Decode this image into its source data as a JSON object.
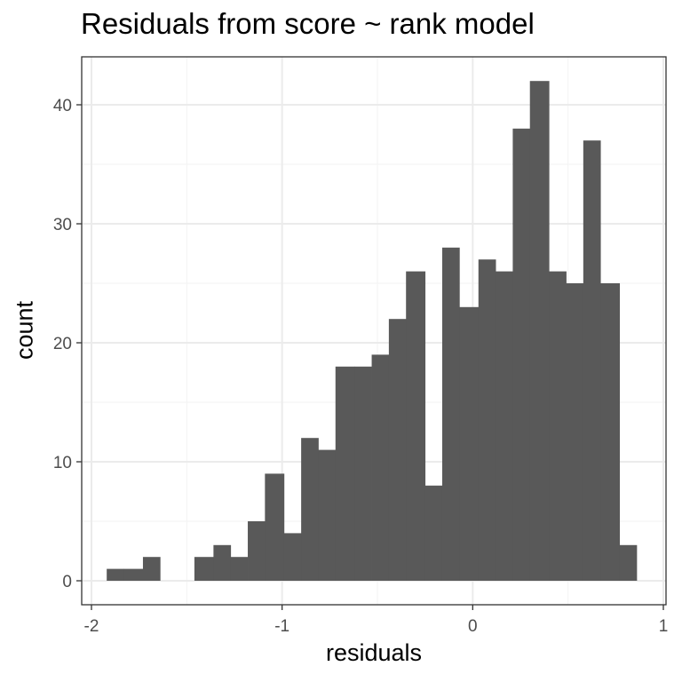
{
  "chart_data": {
    "type": "bar",
    "title": "Residuals from score ~ rank model",
    "xlabel": "residuals",
    "ylabel": "count",
    "xlim": [
      -2.0,
      1.0
    ],
    "ylim": [
      0,
      44
    ],
    "x_ticks": [
      -2,
      -1,
      0,
      1
    ],
    "x_tick_labels": [
      "-2",
      "-1",
      "0",
      "1"
    ],
    "y_ticks": [
      0,
      10,
      20,
      30,
      40
    ],
    "y_tick_labels": [
      "0",
      "10",
      "20",
      "30",
      "40"
    ],
    "bin_width": 0.0925,
    "bins": [
      {
        "x0": -1.92,
        "x1": -1.83,
        "count": 1
      },
      {
        "x0": -1.83,
        "x1": -1.73,
        "count": 1
      },
      {
        "x0": -1.73,
        "x1": -1.64,
        "count": 2
      },
      {
        "x0": -1.64,
        "x1": -1.55,
        "count": 0
      },
      {
        "x0": -1.55,
        "x1": -1.46,
        "count": 0
      },
      {
        "x0": -1.46,
        "x1": -1.36,
        "count": 2
      },
      {
        "x0": -1.36,
        "x1": -1.27,
        "count": 3
      },
      {
        "x0": -1.27,
        "x1": -1.18,
        "count": 2
      },
      {
        "x0": -1.18,
        "x1": -1.09,
        "count": 5
      },
      {
        "x0": -1.09,
        "x1": -0.99,
        "count": 9
      },
      {
        "x0": -0.99,
        "x1": -0.9,
        "count": 4
      },
      {
        "x0": -0.9,
        "x1": -0.81,
        "count": 12
      },
      {
        "x0": -0.81,
        "x1": -0.72,
        "count": 11
      },
      {
        "x0": -0.72,
        "x1": -0.62,
        "count": 18
      },
      {
        "x0": -0.62,
        "x1": -0.53,
        "count": 18
      },
      {
        "x0": -0.53,
        "x1": -0.44,
        "count": 19
      },
      {
        "x0": -0.44,
        "x1": -0.35,
        "count": 22
      },
      {
        "x0": -0.35,
        "x1": -0.25,
        "count": 26
      },
      {
        "x0": -0.25,
        "x1": -0.16,
        "count": 8
      },
      {
        "x0": -0.16,
        "x1": -0.07,
        "count": 28
      },
      {
        "x0": -0.07,
        "x1": 0.03,
        "count": 23
      },
      {
        "x0": 0.03,
        "x1": 0.12,
        "count": 27
      },
      {
        "x0": 0.12,
        "x1": 0.21,
        "count": 26
      },
      {
        "x0": 0.21,
        "x1": 0.3,
        "count": 38
      },
      {
        "x0": 0.3,
        "x1": 0.4,
        "count": 42
      },
      {
        "x0": 0.4,
        "x1": 0.49,
        "count": 26
      },
      {
        "x0": 0.49,
        "x1": 0.58,
        "count": 25
      },
      {
        "x0": 0.58,
        "x1": 0.67,
        "count": 37
      },
      {
        "x0": 0.67,
        "x1": 0.77,
        "count": 25
      },
      {
        "x0": 0.77,
        "x1": 0.86,
        "count": 3
      }
    ],
    "grid": true,
    "theme": "bw",
    "legend": "none",
    "colors": {
      "bar_fill": "#595959",
      "panel_border": "#333333",
      "grid_major": "#ebebeb",
      "grid_minor": "#f3f3f3",
      "tick_text": "#4d4d4d",
      "title_text": "#000000"
    }
  }
}
